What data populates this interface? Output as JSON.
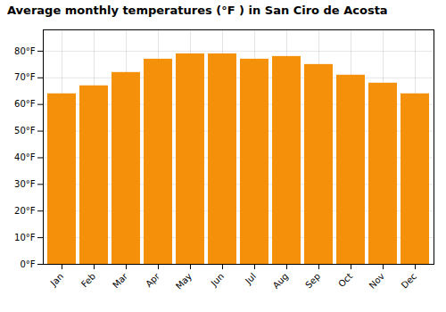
{
  "chart_data": {
    "type": "bar",
    "title": "Average monthly temperatures (°F ) in San Ciro de Acosta",
    "categories": [
      "Jan",
      "Feb",
      "Mar",
      "Apr",
      "May",
      "Jun",
      "Jul",
      "Aug",
      "Sep",
      "Oct",
      "Nov",
      "Dec"
    ],
    "values": [
      64,
      67,
      72,
      77,
      79,
      79,
      77,
      78,
      75,
      71,
      68,
      64
    ],
    "color": "#F5900A",
    "ylim": [
      0,
      88
    ],
    "yticks": [
      {
        "value": 0,
        "label": "0°F"
      },
      {
        "value": 10,
        "label": "10°F"
      },
      {
        "value": 20,
        "label": "20°F"
      },
      {
        "value": 30,
        "label": "30°F"
      },
      {
        "value": 40,
        "label": "40°F"
      },
      {
        "value": 50,
        "label": "50°F"
      },
      {
        "value": 60,
        "label": "60°F"
      },
      {
        "value": 70,
        "label": "70°F"
      },
      {
        "value": 80,
        "label": "80°F"
      }
    ],
    "grid": true
  }
}
